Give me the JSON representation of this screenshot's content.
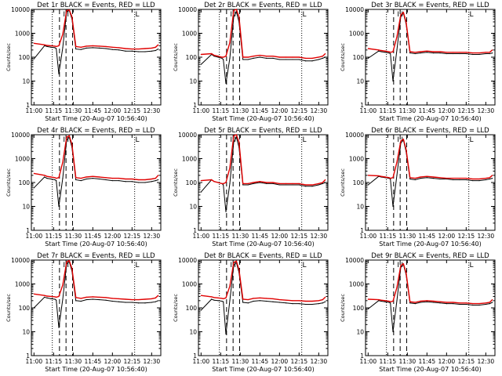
{
  "figure": {
    "background": "#ffffff",
    "events_color": "#000000",
    "lld_color": "#e00000"
  },
  "chart_data": [
    {
      "type": "line",
      "title": "Det 1r BLACK = Events, RED = LLD",
      "xlabel": "Start Time (20-Aug-07 10:56:40)",
      "ylabel": "Counts/sec",
      "y_scale": "log",
      "ylim": [
        1,
        10000
      ],
      "x_ticks": [
        "11:00",
        "11:15",
        "11:30",
        "11:45",
        "12:00",
        "12:15",
        "12:30"
      ],
      "y_ticks": [
        "1",
        "10",
        "100",
        "1000",
        "10000"
      ],
      "x_minutes": [
        0,
        8,
        10,
        13,
        16,
        17,
        19,
        22,
        25,
        27,
        29,
        32,
        36,
        40,
        45,
        50,
        55,
        60,
        65,
        70,
        75,
        80,
        85,
        90,
        93,
        95
      ],
      "series": [
        {
          "name": "Events",
          "values": [
            85,
            300,
            280,
            260,
            250,
            230,
            20,
            250,
            8000,
            9000,
            4000,
            220,
            210,
            240,
            250,
            240,
            230,
            210,
            200,
            180,
            180,
            170,
            170,
            180,
            190,
            220
          ]
        },
        {
          "name": "LLD",
          "values": [
            380,
            330,
            310,
            300,
            290,
            280,
            300,
            900,
            9000,
            9500,
            5000,
            280,
            260,
            290,
            300,
            290,
            280,
            260,
            250,
            230,
            220,
            220,
            230,
            240,
            260,
            330
          ]
        }
      ],
      "dashed_lines": [
        19.5,
        24.5,
        29.5
      ],
      "dotted_lines": [
        14,
        77
      ],
      "top_marks": [
        "I",
        "I",
        "L"
      ]
    },
    {
      "type": "line",
      "title": "Det 2r BLACK = Events, RED = LLD",
      "xlabel": "Start Time (20-Aug-07 10:56:40)",
      "ylabel": "Counts/sec",
      "y_scale": "log",
      "ylim": [
        1,
        10000
      ],
      "x_ticks": [
        "11:00",
        "11:15",
        "11:30",
        "11:45",
        "12:00",
        "12:15",
        "12:30"
      ],
      "y_ticks": [
        "1",
        "10",
        "100",
        "1000",
        "10000"
      ],
      "x_minutes": [
        0,
        8,
        10,
        13,
        16,
        17,
        19,
        22,
        25,
        27,
        29,
        32,
        36,
        40,
        45,
        50,
        55,
        60,
        65,
        70,
        75,
        80,
        85,
        90,
        93,
        95
      ],
      "series": [
        {
          "name": "Events",
          "values": [
            50,
            130,
            110,
            100,
            90,
            80,
            8,
            90,
            5000,
            8000,
            3000,
            80,
            80,
            90,
            100,
            90,
            90,
            80,
            80,
            80,
            80,
            70,
            70,
            80,
            90,
            100
          ]
        },
        {
          "name": "LLD",
          "values": [
            130,
            140,
            120,
            110,
            100,
            100,
            110,
            400,
            9000,
            10000,
            5000,
            100,
            100,
            110,
            120,
            110,
            110,
            100,
            100,
            100,
            100,
            90,
            90,
            100,
            110,
            140
          ]
        }
      ],
      "dashed_lines": [
        19.5,
        24.5,
        29.5
      ],
      "dotted_lines": [
        14,
        77
      ],
      "top_marks": [
        "I",
        "I",
        "L"
      ]
    },
    {
      "type": "line",
      "title": "Det 3r BLACK = Events, RED = LLD",
      "xlabel": "Start Time (20-Aug-07 10:56:40)",
      "ylabel": "Counts/sec",
      "y_scale": "log",
      "ylim": [
        1,
        10000
      ],
      "x_ticks": [
        "11:00",
        "11:15",
        "11:30",
        "11:45",
        "12:00",
        "12:15",
        "12:30"
      ],
      "y_ticks": [
        "1",
        "10",
        "100",
        "1000",
        "10000"
      ],
      "x_minutes": [
        0,
        8,
        10,
        13,
        16,
        17,
        19,
        22,
        25,
        27,
        29,
        32,
        36,
        40,
        45,
        50,
        55,
        60,
        65,
        70,
        75,
        80,
        85,
        90,
        93,
        95
      ],
      "series": [
        {
          "name": "Events",
          "values": [
            90,
            180,
            170,
            160,
            150,
            140,
            10,
            200,
            5000,
            7000,
            2500,
            150,
            140,
            150,
            160,
            150,
            150,
            140,
            140,
            140,
            140,
            130,
            130,
            140,
            140,
            150
          ]
        },
        {
          "name": "LLD",
          "values": [
            230,
            200,
            190,
            180,
            170,
            160,
            170,
            700,
            6000,
            7500,
            3000,
            170,
            160,
            170,
            180,
            170,
            170,
            160,
            160,
            160,
            160,
            150,
            150,
            160,
            160,
            200
          ]
        }
      ],
      "dashed_lines": [
        19.5,
        24.5,
        29.5
      ],
      "dotted_lines": [
        14,
        77
      ],
      "top_marks": [
        "I",
        "I",
        "L"
      ]
    },
    {
      "type": "line",
      "title": "Det 4r BLACK = Events, RED = LLD",
      "xlabel": "Start Time (20-Aug-07 10:56:40)",
      "ylabel": "Counts/sec",
      "y_scale": "log",
      "ylim": [
        1,
        10000
      ],
      "x_ticks": [
        "11:00",
        "11:15",
        "11:30",
        "11:45",
        "12:00",
        "12:15",
        "12:30"
      ],
      "y_ticks": [
        "1",
        "10",
        "100",
        "1000",
        "10000"
      ],
      "x_minutes": [
        0,
        8,
        10,
        13,
        16,
        17,
        19,
        22,
        25,
        27,
        29,
        32,
        36,
        40,
        45,
        50,
        55,
        60,
        65,
        70,
        75,
        80,
        85,
        90,
        93,
        95
      ],
      "series": [
        {
          "name": "Events",
          "values": [
            60,
            170,
            150,
            140,
            130,
            120,
            10,
            150,
            6000,
            8000,
            3000,
            130,
            120,
            140,
            150,
            140,
            130,
            120,
            120,
            110,
            110,
            100,
            100,
            110,
            120,
            130
          ]
        },
        {
          "name": "LLD",
          "values": [
            240,
            200,
            180,
            170,
            160,
            150,
            160,
            700,
            8000,
            9000,
            4000,
            160,
            150,
            170,
            180,
            170,
            160,
            150,
            150,
            140,
            140,
            130,
            130,
            140,
            150,
            200
          ]
        }
      ],
      "dashed_lines": [
        19.5,
        24.5,
        29.5
      ],
      "dotted_lines": [
        14,
        77
      ],
      "top_marks": [
        "I",
        "I",
        "L"
      ]
    },
    {
      "type": "line",
      "title": "Det 5r BLACK = Events, RED = LLD",
      "xlabel": "Start Time (20-Aug-07 10:56:40)",
      "ylabel": "Counts/sec",
      "y_scale": "log",
      "ylim": [
        1,
        10000
      ],
      "x_ticks": [
        "11:00",
        "11:15",
        "11:30",
        "11:45",
        "12:00",
        "12:15",
        "12:30"
      ],
      "y_ticks": [
        "1",
        "10",
        "100",
        "1000",
        "10000"
      ],
      "x_minutes": [
        0,
        8,
        10,
        13,
        16,
        17,
        19,
        22,
        25,
        27,
        29,
        32,
        36,
        40,
        45,
        50,
        55,
        60,
        65,
        70,
        75,
        80,
        85,
        90,
        93,
        95
      ],
      "series": [
        {
          "name": "Events",
          "values": [
            40,
            130,
            110,
            100,
            90,
            80,
            6,
            90,
            5000,
            8000,
            3000,
            80,
            80,
            90,
            100,
            90,
            90,
            80,
            80,
            80,
            80,
            70,
            70,
            80,
            90,
            100
          ]
        },
        {
          "name": "LLD",
          "values": [
            120,
            130,
            110,
            100,
            90,
            90,
            100,
            400,
            9000,
            10000,
            5000,
            90,
            90,
            100,
            110,
            100,
            100,
            90,
            90,
            90,
            90,
            80,
            80,
            90,
            100,
            130
          ]
        }
      ],
      "dashed_lines": [
        19.5,
        24.5,
        29.5
      ],
      "dotted_lines": [
        14,
        77
      ],
      "top_marks": [
        "I",
        "I",
        "L"
      ]
    },
    {
      "type": "line",
      "title": "Det 6r BLACK = Events, RED = LLD",
      "xlabel": "Start Time (20-Aug-07 10:56:40)",
      "ylabel": "Counts/sec",
      "y_scale": "log",
      "ylim": [
        1,
        10000
      ],
      "x_ticks": [
        "11:00",
        "11:15",
        "11:30",
        "11:45",
        "12:00",
        "12:15",
        "12:30"
      ],
      "y_ticks": [
        "1",
        "10",
        "100",
        "1000",
        "10000"
      ],
      "x_minutes": [
        0,
        8,
        10,
        13,
        16,
        17,
        19,
        22,
        25,
        27,
        29,
        32,
        36,
        40,
        45,
        50,
        55,
        60,
        65,
        70,
        75,
        80,
        85,
        90,
        93,
        95
      ],
      "series": [
        {
          "name": "Events",
          "values": [
            80,
            180,
            170,
            160,
            150,
            140,
            10,
            200,
            4500,
            6000,
            2000,
            140,
            130,
            150,
            160,
            150,
            140,
            140,
            130,
            130,
            130,
            120,
            120,
            130,
            140,
            150
          ]
        },
        {
          "name": "LLD",
          "values": [
            200,
            190,
            180,
            170,
            160,
            150,
            160,
            700,
            5500,
            6500,
            2500,
            160,
            150,
            170,
            180,
            170,
            160,
            150,
            150,
            150,
            150,
            140,
            140,
            150,
            160,
            200
          ]
        }
      ],
      "dashed_lines": [
        19.5,
        24.5,
        29.5
      ],
      "dotted_lines": [
        14,
        77
      ],
      "top_marks": [
        "I",
        "I",
        "L"
      ]
    },
    {
      "type": "line",
      "title": "Det 7r BLACK = Events, RED = LLD",
      "xlabel": "Start Time (20-Aug-07 10:56:40)",
      "ylabel": "Counts/sec",
      "y_scale": "log",
      "ylim": [
        1,
        10000
      ],
      "x_ticks": [
        "11:00",
        "11:15",
        "11:30",
        "11:45",
        "12:00",
        "12:15",
        "12:30"
      ],
      "y_ticks": [
        "1",
        "10",
        "100",
        "1000",
        "10000"
      ],
      "x_minutes": [
        0,
        8,
        10,
        13,
        16,
        17,
        19,
        22,
        25,
        27,
        29,
        32,
        36,
        40,
        45,
        50,
        55,
        60,
        65,
        70,
        75,
        80,
        85,
        90,
        93,
        95
      ],
      "series": [
        {
          "name": "Events",
          "values": [
            100,
            280,
            260,
            240,
            230,
            210,
            15,
            230,
            7000,
            8500,
            3500,
            200,
            190,
            220,
            230,
            220,
            210,
            190,
            180,
            170,
            170,
            160,
            160,
            170,
            180,
            200
          ]
        },
        {
          "name": "LLD",
          "values": [
            380,
            330,
            310,
            300,
            290,
            280,
            300,
            900,
            8500,
            9500,
            4500,
            270,
            250,
            280,
            290,
            280,
            270,
            250,
            240,
            230,
            220,
            220,
            230,
            240,
            260,
            330
          ]
        }
      ],
      "dashed_lines": [
        19.5,
        24.5,
        29.5
      ],
      "dotted_lines": [
        14,
        77
      ],
      "top_marks": [
        "I",
        "I",
        "L"
      ]
    },
    {
      "type": "line",
      "title": "Det 8r BLACK = Events, RED = LLD",
      "xlabel": "Start Time (20-Aug-07 10:56:40)",
      "ylabel": "Counts/sec",
      "y_scale": "log",
      "ylim": [
        1,
        10000
      ],
      "x_ticks": [
        "11:00",
        "11:15",
        "11:30",
        "11:45",
        "12:00",
        "12:15",
        "12:30"
      ],
      "y_ticks": [
        "1",
        "10",
        "100",
        "1000",
        "10000"
      ],
      "x_minutes": [
        0,
        8,
        10,
        13,
        16,
        17,
        19,
        22,
        25,
        27,
        29,
        32,
        36,
        40,
        45,
        50,
        55,
        60,
        65,
        70,
        75,
        80,
        85,
        90,
        93,
        95
      ],
      "series": [
        {
          "name": "Events",
          "values": [
            80,
            230,
            210,
            200,
            190,
            180,
            8,
            200,
            6000,
            8000,
            3000,
            170,
            160,
            190,
            200,
            190,
            180,
            170,
            160,
            150,
            150,
            140,
            140,
            150,
            160,
            180
          ]
        },
        {
          "name": "LLD",
          "values": [
            330,
            290,
            270,
            260,
            250,
            240,
            260,
            800,
            8000,
            9000,
            4000,
            230,
            220,
            250,
            260,
            250,
            240,
            220,
            210,
            200,
            200,
            190,
            190,
            200,
            220,
            280
          ]
        }
      ],
      "dashed_lines": [
        19.5,
        24.5,
        29.5
      ],
      "dotted_lines": [
        14,
        77
      ],
      "top_marks": [
        "I",
        "I",
        "L"
      ]
    },
    {
      "type": "line",
      "title": "Det 9r BLACK = Events, RED = LLD",
      "xlabel": "Start Time (20-Aug-07 10:56:40)",
      "ylabel": "Counts/sec",
      "y_scale": "log",
      "ylim": [
        1,
        10000
      ],
      "x_ticks": [
        "11:00",
        "11:15",
        "11:30",
        "11:45",
        "12:00",
        "12:15",
        "12:30"
      ],
      "y_ticks": [
        "1",
        "10",
        "100",
        "1000",
        "10000"
      ],
      "x_minutes": [
        0,
        8,
        10,
        13,
        16,
        17,
        19,
        22,
        25,
        27,
        29,
        32,
        36,
        40,
        45,
        50,
        55,
        60,
        65,
        70,
        75,
        80,
        85,
        90,
        93,
        95
      ],
      "series": [
        {
          "name": "Events",
          "values": [
            90,
            200,
            190,
            180,
            170,
            160,
            10,
            200,
            5000,
            6500,
            2500,
            160,
            150,
            170,
            180,
            170,
            160,
            150,
            150,
            140,
            140,
            130,
            130,
            140,
            150,
            170
          ]
        },
        {
          "name": "LLD",
          "values": [
            230,
            220,
            210,
            200,
            190,
            180,
            190,
            700,
            6000,
            7000,
            3000,
            180,
            170,
            190,
            200,
            190,
            180,
            170,
            170,
            160,
            160,
            150,
            150,
            160,
            170,
            220
          ]
        }
      ],
      "dashed_lines": [
        19.5,
        24.5,
        29.5
      ],
      "dotted_lines": [
        14,
        77
      ],
      "top_marks": [
        "I",
        "I",
        "L"
      ]
    }
  ]
}
